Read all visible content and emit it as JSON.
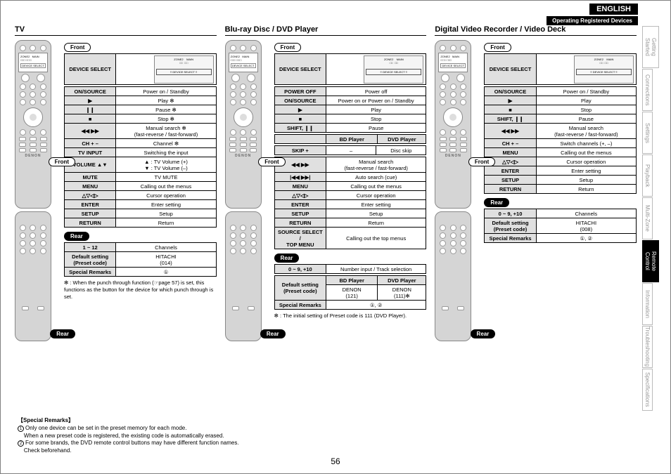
{
  "lang": "ENGLISH",
  "header_bar": "Operating Registered Devices",
  "page_number": "56",
  "side_tabs": [
    "Getting Started",
    "Connections",
    "Settings",
    "Playback",
    "Multi-Zone",
    "Remote Control",
    "Information",
    "Troubleshooting",
    "Specifications"
  ],
  "active_tab": 5,
  "labels": {
    "front": "Front",
    "rear": "Rear",
    "device_select": "DEVICE SELECT"
  },
  "col1": {
    "title": "TV",
    "front_rows": [
      [
        "ON/SOURCE",
        "Power on / Standby"
      ],
      [
        "▶",
        "Play ✻"
      ],
      [
        "❙❙",
        "Pause ✻"
      ],
      [
        "■",
        "Stop ✻"
      ],
      [
        "◀◀ ▶▶",
        "Manual search ✻\n(fast-reverse / fast-forward)"
      ],
      [
        "CH + –",
        "Channel ✻"
      ],
      [
        "TV INPUT",
        "Switching the input"
      ],
      [
        "VOLUME ▲▼",
        "▲ : TV Volume (+)\n▼ : TV Volume (–)"
      ],
      [
        "MUTE",
        "TV MUTE"
      ],
      [
        "MENU",
        "Calling out the menus"
      ],
      [
        "△▽◁▷",
        "Cursor operation"
      ],
      [
        "ENTER",
        "Enter setting"
      ],
      [
        "SETUP",
        "Setup"
      ],
      [
        "RETURN",
        "Return"
      ]
    ],
    "rear_rows": [
      [
        "1 ~ 12",
        "Channels"
      ],
      [
        "Default setting\n(Preset code)",
        "HITACHI\n(014)"
      ],
      [
        "Special Remarks",
        "①"
      ]
    ],
    "note": "✻ : When the punch through function (☞page 57) is set, this functions as the button for the device for which punch through is set."
  },
  "col2": {
    "title": "Blu-ray Disc / DVD Player",
    "front_rows": [
      [
        "POWER OFF",
        "Power off"
      ],
      [
        "ON/SOURCE",
        "Power on or Power on / Standby"
      ],
      [
        "▶",
        "Play"
      ],
      [
        "■",
        "Stop"
      ],
      [
        "SHIFT, ❙❙",
        "Pause"
      ]
    ],
    "split_header": [
      "BD Player",
      "DVD Player"
    ],
    "skip_row": [
      "SKIP +",
      "–",
      "Disc skip"
    ],
    "front_rows2": [
      [
        "◀◀ ▶▶",
        "Manual search\n(fast-reverse / fast-forward)"
      ],
      [
        "|◀◀ ▶▶|",
        "Auto search (cue)"
      ],
      [
        "MENU",
        "Calling out the menus"
      ],
      [
        "△▽◁▷",
        "Cursor operation"
      ],
      [
        "ENTER",
        "Enter setting"
      ],
      [
        "SETUP",
        "Setup"
      ],
      [
        "RETURN",
        "Return"
      ],
      [
        "SOURCE SELECT /\nTOP MENU",
        "Calling out the top menus"
      ]
    ],
    "rear_rows": [
      [
        "0 ~ 9, +10",
        "Number input / Track selection"
      ]
    ],
    "rear_split_header": [
      "BD Player",
      "DVD Player"
    ],
    "rear_default": [
      "Default setting\n(Preset code)",
      "DENON\n(121)",
      "DENON\n(111)✻"
    ],
    "rear_remarks": [
      "Special Remarks",
      "①, ②"
    ],
    "note": "✻ : The initial setting of Preset code is 111 (DVD Player)."
  },
  "col3": {
    "title": "Digital Video Recorder / Video Deck",
    "front_rows": [
      [
        "ON/SOURCE",
        "Power on / Standby"
      ],
      [
        "▶",
        "Play"
      ],
      [
        "■",
        "Stop"
      ],
      [
        "SHIFT, ❙❙",
        "Pause"
      ],
      [
        "◀◀ ▶▶",
        "Manual search\n(fast-reverse / fast-forward)"
      ],
      [
        "CH + –",
        "Switch channels (+, –)"
      ],
      [
        "MENU",
        "Calling out the menus"
      ],
      [
        "△▽◁▷",
        "Cursor operation"
      ],
      [
        "ENTER",
        "Enter setting"
      ],
      [
        "SETUP",
        "Setup"
      ],
      [
        "RETURN",
        "Return"
      ]
    ],
    "rear_rows": [
      [
        "0 ~ 9, +10",
        "Channels"
      ],
      [
        "Default setting\n(Preset code)",
        "HITACHI\n(008)"
      ],
      [
        "Special Remarks",
        "①, ②"
      ]
    ]
  },
  "remarks_title": "【Special Remarks】",
  "remarks": [
    "Only one device can be set in the preset memory for each mode.\nWhen a new preset code is registered, the existing code is automatically erased.",
    "For some brands, the DVD remote control buttons may have different function names.\nCheck beforehand."
  ]
}
